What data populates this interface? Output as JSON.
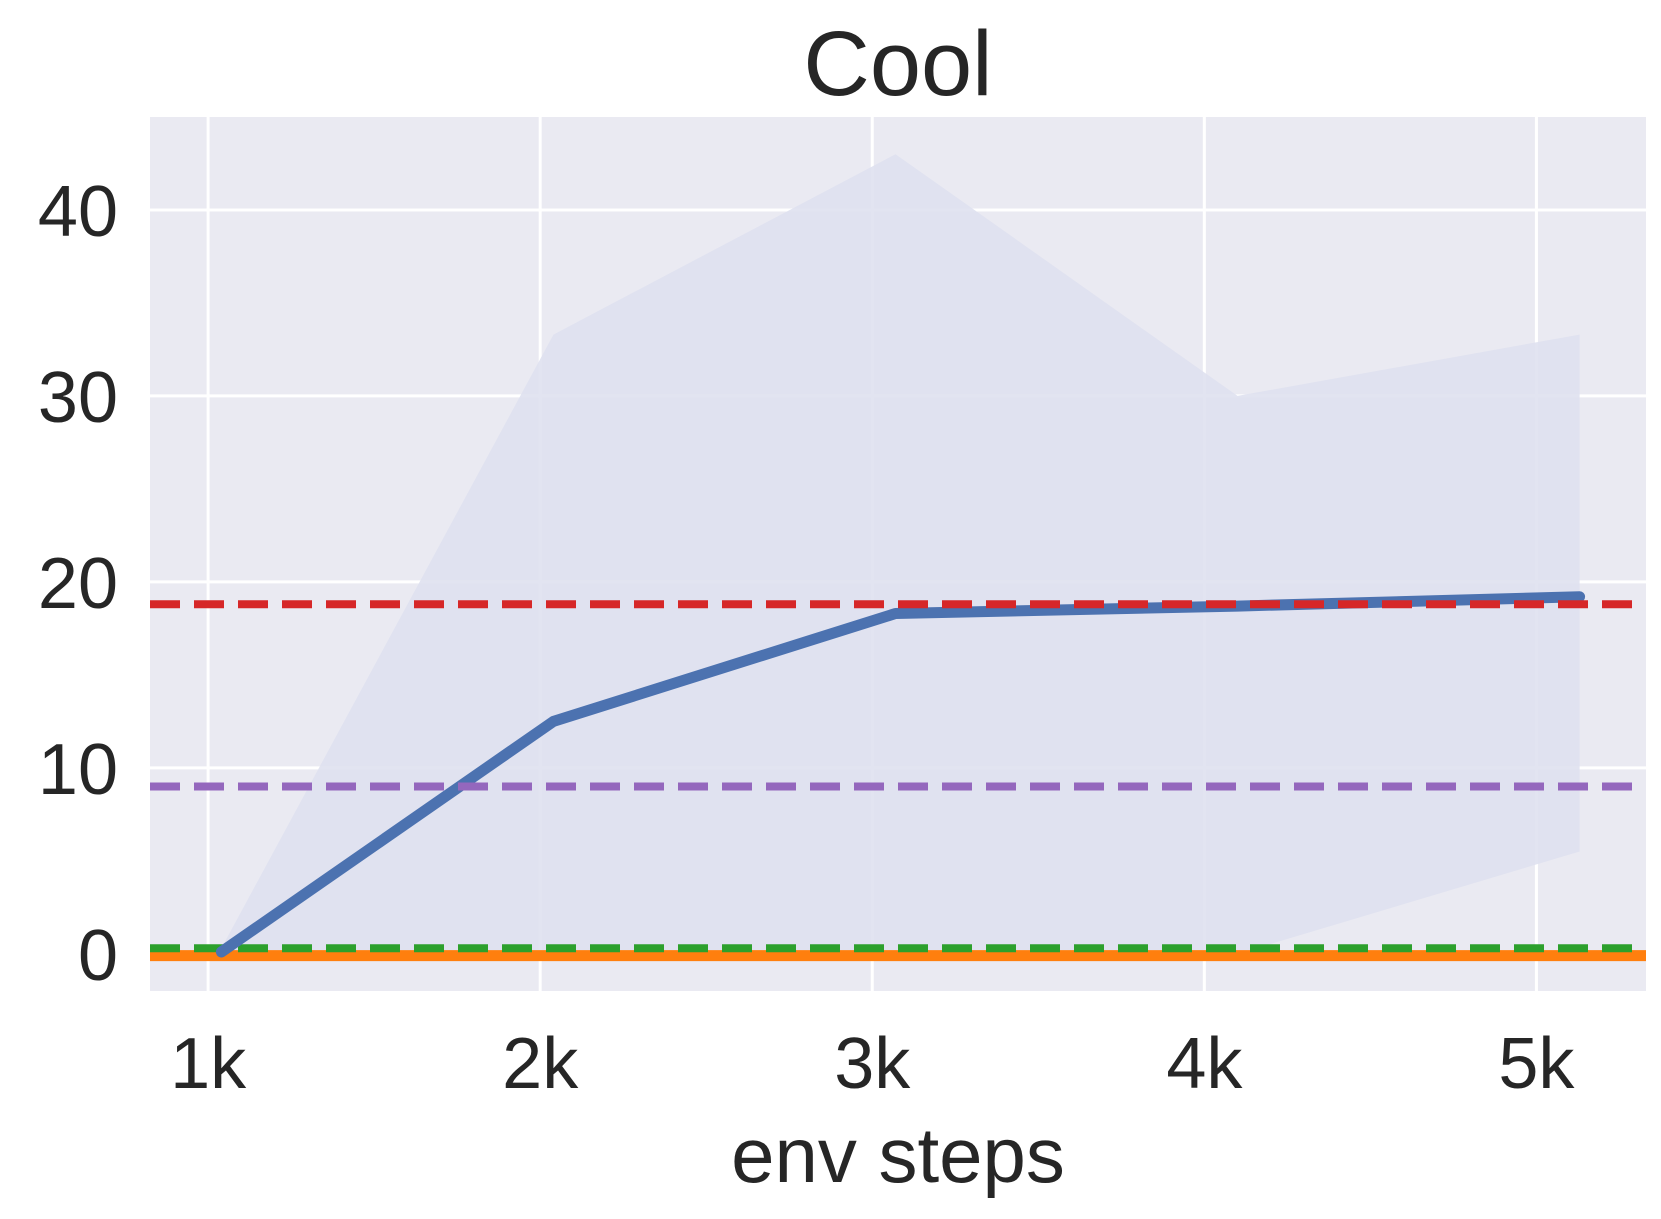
{
  "chart_data": {
    "type": "line",
    "title": "Cool",
    "xlabel": "env steps",
    "ylabel": "",
    "xlim": [
      825,
      5330
    ],
    "ylim": [
      -2,
      45
    ],
    "xticks": [
      1000,
      2000,
      3000,
      4000,
      5000
    ],
    "xtick_labels": [
      "1k",
      "2k",
      "3k",
      "4k",
      "5k"
    ],
    "yticks": [
      0,
      10,
      20,
      30,
      40
    ],
    "ytick_labels": [
      "0",
      "10",
      "20",
      "30",
      "40"
    ],
    "grid": true,
    "legend": "none",
    "series": [
      {
        "style": "solid",
        "color": "#4c72b0",
        "x": [
          1040,
          2040,
          3070,
          4100,
          5130
        ],
        "y": [
          0.1,
          12.5,
          18.3,
          18.7,
          19.2
        ],
        "band_upper": [
          0.3,
          33.3,
          43.0,
          30.0,
          33.3
        ],
        "band_lower": [
          0.0,
          0.0,
          0.0,
          0.0,
          5.5
        ],
        "band_color": "#dfe1ef"
      },
      {
        "style": "dashed",
        "color": "#d62728",
        "y_const": 18.8
      },
      {
        "style": "dashed",
        "color": "#9467bd",
        "y_const": 9.0
      },
      {
        "style": "dashed",
        "color": "#2ca02c",
        "y_const": 0.3
      },
      {
        "style": "solid",
        "color": "#ff7f0e",
        "y_const": -0.1
      }
    ]
  },
  "colors": {
    "plot_background": "#eaeaf2",
    "grid": "#ffffff",
    "text": "#262626"
  }
}
